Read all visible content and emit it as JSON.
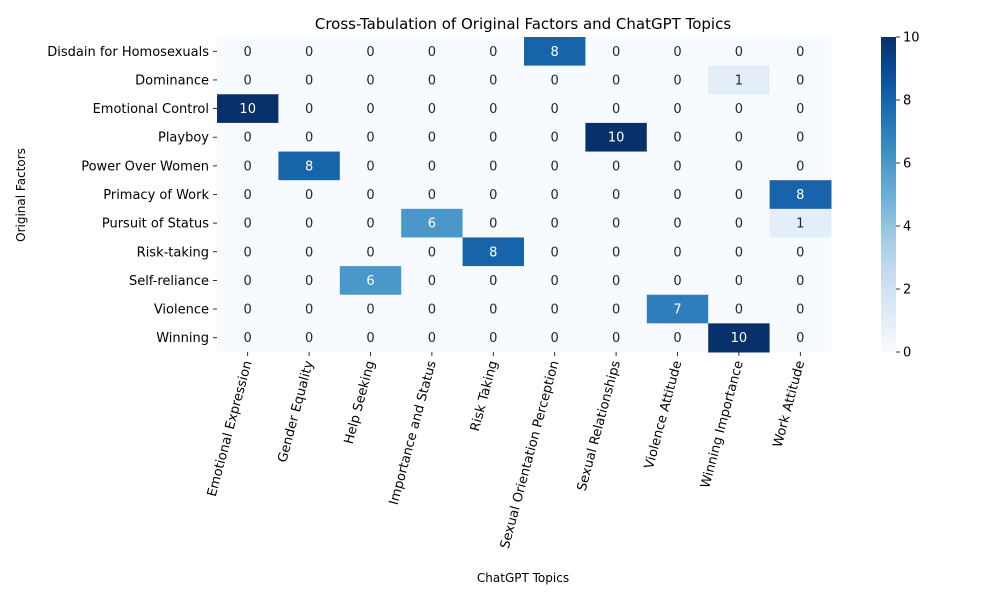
{
  "chart_data": {
    "type": "heatmap",
    "title": "Cross-Tabulation of Original Factors and ChatGPT Topics",
    "xlabel": "ChatGPT Topics",
    "ylabel": "Original Factors",
    "rows": [
      "Disdain for Homosexuals",
      "Dominance",
      "Emotional Control",
      "Playboy",
      "Power Over Women",
      "Primacy of Work",
      "Pursuit of Status",
      "Risk-taking",
      "Self-reliance",
      "Violence",
      "Winning"
    ],
    "columns": [
      "Emotional Expression",
      "Gender Equality",
      "Help Seeking",
      "Importance and Status",
      "Risk Taking",
      "Sexual Orientation Perception",
      "Sexual Relationships",
      "Violence Attitude",
      "Winning Importance",
      "Work Attitude"
    ],
    "values": [
      [
        0,
        0,
        0,
        0,
        0,
        8,
        0,
        0,
        0,
        0
      ],
      [
        0,
        0,
        0,
        0,
        0,
        0,
        0,
        0,
        1,
        0
      ],
      [
        10,
        0,
        0,
        0,
        0,
        0,
        0,
        0,
        0,
        0
      ],
      [
        0,
        0,
        0,
        0,
        0,
        0,
        10,
        0,
        0,
        0
      ],
      [
        0,
        8,
        0,
        0,
        0,
        0,
        0,
        0,
        0,
        0
      ],
      [
        0,
        0,
        0,
        0,
        0,
        0,
        0,
        0,
        0,
        8
      ],
      [
        0,
        0,
        0,
        6,
        0,
        0,
        0,
        0,
        0,
        1
      ],
      [
        0,
        0,
        0,
        0,
        8,
        0,
        0,
        0,
        0,
        0
      ],
      [
        0,
        0,
        6,
        0,
        0,
        0,
        0,
        0,
        0,
        0
      ],
      [
        0,
        0,
        0,
        0,
        0,
        0,
        0,
        7,
        0,
        0
      ],
      [
        0,
        0,
        0,
        0,
        0,
        0,
        0,
        0,
        10,
        0
      ]
    ],
    "colorbar": {
      "min": 0,
      "max": 10,
      "ticks": [
        "0",
        "2",
        "4",
        "6",
        "8",
        "10"
      ],
      "colormap": "Blues",
      "low_color": "#f7fbff",
      "high_color": "#08306b"
    },
    "annotations": true,
    "grid": false,
    "legend": "colorbar-right"
  }
}
